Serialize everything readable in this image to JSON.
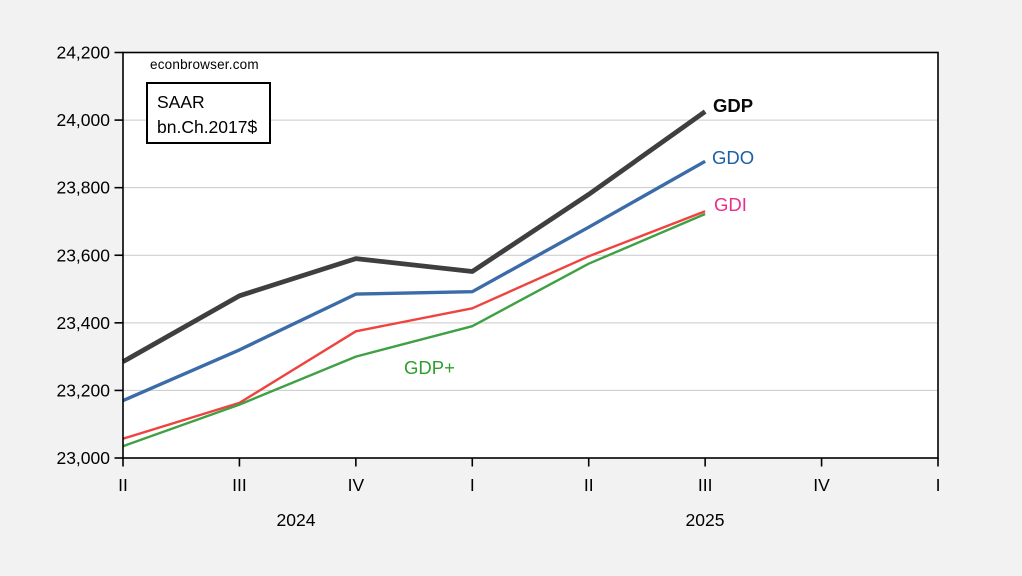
{
  "page": {
    "background_color": "#f2f2f2",
    "plot_background_color": "#ffffff",
    "grid_color": "#c9c9c9",
    "frame_color": "#000000"
  },
  "watermark": "econbrowser.com",
  "units_box": {
    "line1": "SAAR",
    "line2": "bn.Ch.2017$"
  },
  "chart_data": {
    "type": "line",
    "title": "",
    "xlabel": "",
    "ylabel": "",
    "grid": "horizontal gridlines only",
    "legend_position": "inline labels at line ends",
    "ylim": [
      23000,
      24200
    ],
    "ytick_step": 200,
    "y_tick_labels": [
      "23,000",
      "23,200",
      "23,400",
      "23,600",
      "23,800",
      "24,000",
      "24,200"
    ],
    "x_axis_tick_labels": [
      "II",
      "III",
      "IV",
      "I",
      "II",
      "III",
      "IV",
      "I"
    ],
    "x_axis_year_labels": [
      "2024",
      "2025"
    ],
    "x_categories": [
      "2024Q2",
      "2024Q3",
      "2024Q4",
      "2025Q1",
      "2025Q2",
      "2025Q3"
    ],
    "series": [
      {
        "name": "GDP",
        "label": "GDP",
        "bold_label": true,
        "color": "#3f3f3f",
        "label_color": "#0a0a0a",
        "stroke_width": 4.8,
        "values": [
          23285,
          23480,
          23590,
          23552,
          23780,
          24025
        ]
      },
      {
        "name": "GDO",
        "label": "GDO",
        "bold_label": false,
        "color": "#3c6ca8",
        "label_color": "#1c5fa8",
        "stroke_width": 3.4,
        "values": [
          23170,
          23320,
          23485,
          23492,
          23683,
          23878
        ]
      },
      {
        "name": "GDI",
        "label": "GDI",
        "bold_label": false,
        "color": "#ef4340",
        "label_color": "#ea2f8b",
        "stroke_width": 2.4,
        "values": [
          23057,
          23163,
          23375,
          23443,
          23597,
          23730
        ]
      },
      {
        "name": "GDP+",
        "label": "GDP+",
        "bold_label": false,
        "color": "#3fa044",
        "label_color": "#2f9e2f",
        "stroke_width": 2.4,
        "values": [
          23035,
          23158,
          23300,
          23390,
          23575,
          23722
        ]
      }
    ]
  }
}
